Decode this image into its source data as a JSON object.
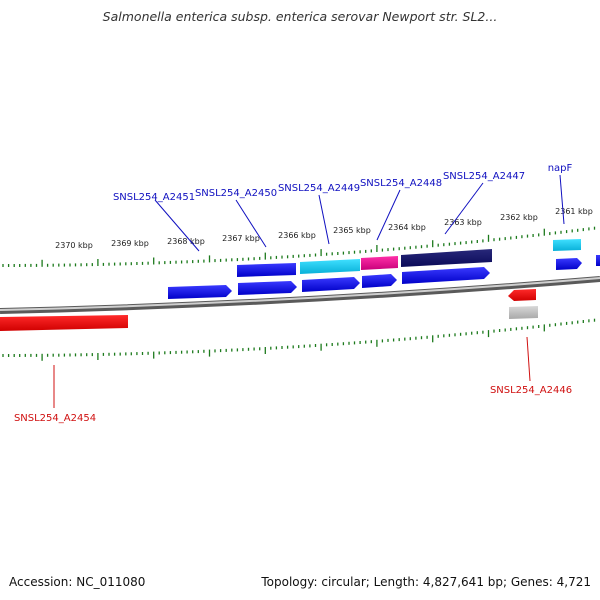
{
  "title": "Salmonella enterica subsp. enterica serovar Newport str. SL2...",
  "footer": {
    "accession": "Accession: NC_011080",
    "stats": "Topology: circular; Length: 4,827,641 bp; Genes: 4,721"
  },
  "colors": {
    "forward_gene": "#1010e0",
    "reverse_gene": "#e01010",
    "highlight_cyan": "#10c8e8",
    "highlight_magenta": "#e0108a",
    "highlight_navy": "#10106a",
    "pseudo_gray": "#b8b8b8",
    "tick": "#1c7a1c",
    "backbone": "#888888",
    "label_forward": "#1010c0",
    "label_reverse": "#d01010"
  },
  "ticks": [
    {
      "label": "2370 kbp"
    },
    {
      "label": "2369 kbp"
    },
    {
      "label": "2368 kbp"
    },
    {
      "label": "2367 kbp"
    },
    {
      "label": "2366 kbp"
    },
    {
      "label": "2365 kbp"
    },
    {
      "label": "2364 kbp"
    },
    {
      "label": "2363 kbp"
    },
    {
      "label": "2362 kbp"
    },
    {
      "label": "2361 kbp"
    }
  ],
  "gene_labels": [
    {
      "text": "SNSL254_A2451",
      "strand": "forward"
    },
    {
      "text": "SNSL254_A2450",
      "strand": "forward"
    },
    {
      "text": "SNSL254_A2449",
      "strand": "forward"
    },
    {
      "text": "SNSL254_A2448",
      "strand": "forward"
    },
    {
      "text": "SNSL254_A2447",
      "strand": "forward"
    },
    {
      "text": "napF",
      "strand": "forward"
    },
    {
      "text": "SNSL254_A2454",
      "strand": "reverse"
    },
    {
      "text": "SNSL254_A2446",
      "strand": "reverse"
    }
  ]
}
